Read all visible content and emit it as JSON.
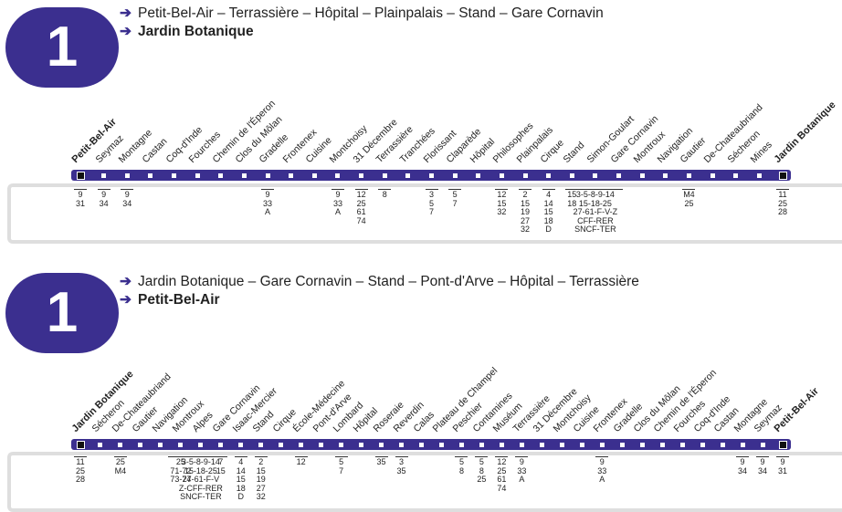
{
  "routes": [
    {
      "line_number": "1",
      "via": "Petit-Bel-Air – Terrassière – Hôpital – Plainpalais – Stand – Gare Cornavin",
      "destination": "Jardin Botanique",
      "stops": [
        {
          "name": "Petit-Bel-Air",
          "terminus": true,
          "connections": [
            "9",
            "31"
          ]
        },
        {
          "name": "Seymaz",
          "connections": [
            "9",
            "34"
          ]
        },
        {
          "name": "Montagne",
          "connections": [
            "9",
            "34"
          ]
        },
        {
          "name": "Castan",
          "connections": []
        },
        {
          "name": "Coq-d'Inde",
          "connections": []
        },
        {
          "name": "Fourches",
          "connections": []
        },
        {
          "name": "Chemin de l'Éperon",
          "connections": []
        },
        {
          "name": "Clos du Môlan",
          "connections": []
        },
        {
          "name": "Gradelle",
          "connections": [
            "9",
            "33",
            "A"
          ]
        },
        {
          "name": "Frontenex",
          "connections": []
        },
        {
          "name": "Cuisine",
          "connections": []
        },
        {
          "name": "Montchoisy",
          "connections": [
            "9",
            "33",
            "A"
          ]
        },
        {
          "name": "31 Décembre",
          "connections": [
            "12",
            "25",
            "61",
            "74"
          ]
        },
        {
          "name": "Terrassière",
          "connections": [
            "8"
          ]
        },
        {
          "name": "Tranchées",
          "connections": []
        },
        {
          "name": "Florissant",
          "connections": [
            "3",
            "5",
            "7"
          ]
        },
        {
          "name": "Claparède",
          "connections": [
            "5",
            "7"
          ]
        },
        {
          "name": "Hôpital",
          "connections": []
        },
        {
          "name": "Philosophes",
          "connections": [
            "12",
            "15",
            "32"
          ]
        },
        {
          "name": "Plainpalais",
          "connections": [
            "2",
            "15",
            "19",
            "27",
            "32"
          ]
        },
        {
          "name": "Cirque",
          "connections": [
            "4",
            "14",
            "15",
            "18",
            "D"
          ]
        },
        {
          "name": "Stand",
          "connections": [
            "15",
            "18"
          ]
        },
        {
          "name": "Simon-Goulart",
          "connections": [
            "3-5-8-9-14",
            "15-18-25",
            "27-61-F-V-Z",
            "CFF-RER",
            "SNCF-TER"
          ]
        },
        {
          "name": "Gare Cornavin",
          "connections": []
        },
        {
          "name": "Montroux",
          "connections": []
        },
        {
          "name": "Navigation",
          "connections": []
        },
        {
          "name": "Gautier",
          "connections": [
            "M4",
            "25"
          ]
        },
        {
          "name": "De-Chateaubriand",
          "connections": []
        },
        {
          "name": "Sécheron",
          "connections": []
        },
        {
          "name": "Mines",
          "connections": []
        },
        {
          "name": "Jardin Botanique",
          "terminus": true,
          "connections": [
            "11",
            "25",
            "28"
          ]
        }
      ]
    },
    {
      "line_number": "1",
      "via": "Jardin Botanique – Gare Cornavin – Stand – Pont-d'Arve – Hôpital  – Terrassière",
      "destination": "Petit-Bel-Air",
      "stops": [
        {
          "name": "Jardin Botanique",
          "terminus": true,
          "connections": [
            "11",
            "25",
            "28"
          ]
        },
        {
          "name": "Sécheron",
          "connections": []
        },
        {
          "name": "De-Chateaubriand",
          "connections": [
            "25",
            "M4"
          ]
        },
        {
          "name": "Gautier",
          "connections": []
        },
        {
          "name": "Navigation",
          "connections": []
        },
        {
          "name": "Montroux",
          "connections": [
            "25",
            "71-72",
            "73-74"
          ]
        },
        {
          "name": "Alpes",
          "connections": [
            "3-5-8-9-14",
            "15-18-25",
            "27-61-F-V",
            "Z-CFF-RER",
            "SNCF-TER"
          ]
        },
        {
          "name": "Gare Cornavin",
          "connections": [
            "7",
            "15"
          ]
        },
        {
          "name": "Isaac-Mercier",
          "connections": [
            "4",
            "14",
            "15",
            "18",
            "D"
          ]
        },
        {
          "name": "Stand",
          "connections": [
            "2",
            "15",
            "19",
            "27",
            "32"
          ]
        },
        {
          "name": "Cirque",
          "connections": []
        },
        {
          "name": "École-Médecine",
          "connections": [
            "12"
          ]
        },
        {
          "name": "Pont-d'Arve",
          "connections": []
        },
        {
          "name": "Lombard",
          "connections": [
            "5",
            "7"
          ]
        },
        {
          "name": "Hôpital",
          "connections": []
        },
        {
          "name": "Roseraie",
          "connections": [
            "35"
          ]
        },
        {
          "name": "Reverdin",
          "connections": [
            "3",
            "35"
          ]
        },
        {
          "name": "Calas",
          "connections": []
        },
        {
          "name": "Plateau de Champel",
          "connections": []
        },
        {
          "name": "Peschier",
          "connections": [
            "5",
            "8"
          ]
        },
        {
          "name": "Contamines",
          "connections": [
            "5",
            "8",
            "25"
          ]
        },
        {
          "name": "Muséum",
          "connections": [
            "12",
            "25",
            "61",
            "74"
          ]
        },
        {
          "name": "Terrassière",
          "connections": [
            "9",
            "33",
            "A"
          ]
        },
        {
          "name": "31 Décembre",
          "connections": []
        },
        {
          "name": "Montchoisy",
          "connections": []
        },
        {
          "name": "Cuisine",
          "connections": []
        },
        {
          "name": "Frontenex",
          "connections": [
            "9",
            "33",
            "A"
          ]
        },
        {
          "name": "Gradelle",
          "connections": []
        },
        {
          "name": "Clos du Môlan",
          "connections": []
        },
        {
          "name": "Chemin de l'Éperon",
          "connections": []
        },
        {
          "name": "Fourches",
          "connections": []
        },
        {
          "name": "Coq-d'Inde",
          "connections": []
        },
        {
          "name": "Castan",
          "connections": []
        },
        {
          "name": "Montagne",
          "connections": [
            "9",
            "34"
          ]
        },
        {
          "name": "Seymaz",
          "connections": [
            "9",
            "34"
          ]
        },
        {
          "name": "Petit-Bel-Air",
          "terminus": true,
          "connections": [
            "9",
            "31"
          ]
        }
      ]
    }
  ],
  "colors": {
    "line": "#3b2f8f",
    "frame": "#dedede",
    "text": "#222222"
  },
  "icons": {
    "direction": "arrow-right-icon"
  }
}
